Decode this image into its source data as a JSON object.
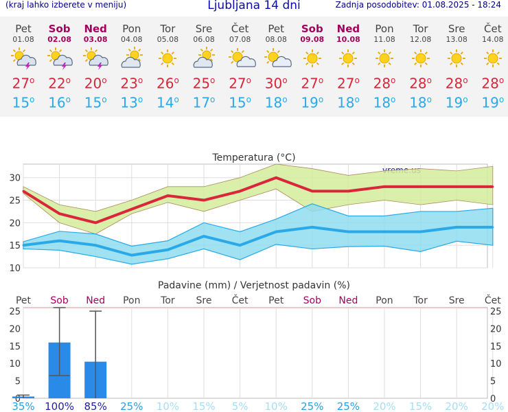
{
  "header": {
    "note": "(kraj lahko izberete v meniju)",
    "title": "Ljubljana 14 dni",
    "updated": "Zadnja posodobitev: 01.08.2025 - 18:24"
  },
  "days": [
    {
      "name": "Pet",
      "date": "01.08",
      "icon": "sun-cloud-lightning-icon",
      "tmax": "27",
      "tmin": "15",
      "weekend": false
    },
    {
      "name": "Sob",
      "date": "02.08",
      "icon": "sun-cloud-lightning-icon",
      "tmax": "22",
      "tmin": "16",
      "weekend": true
    },
    {
      "name": "Ned",
      "date": "03.08",
      "icon": "sun-cloud-lightning-icon",
      "tmax": "20",
      "tmin": "15",
      "weekend": true
    },
    {
      "name": "Pon",
      "date": "04.08",
      "icon": "cloud-sun-icon",
      "tmax": "23",
      "tmin": "13",
      "weekend": false
    },
    {
      "name": "Tor",
      "date": "05.08",
      "icon": "sun-icon",
      "tmax": "26",
      "tmin": "14",
      "weekend": false
    },
    {
      "name": "Sre",
      "date": "06.08",
      "icon": "cloud-sun-icon",
      "tmax": "25",
      "tmin": "17",
      "weekend": false
    },
    {
      "name": "Čet",
      "date": "07.08",
      "icon": "sun-small-cloud-icon",
      "tmax": "27",
      "tmin": "15",
      "weekend": false
    },
    {
      "name": "Pet",
      "date": "08.08",
      "icon": "sun-small-cloud-icon",
      "tmax": "30",
      "tmin": "18",
      "weekend": false
    },
    {
      "name": "Sob",
      "date": "09.08",
      "icon": "sun-icon",
      "tmax": "27",
      "tmin": "19",
      "weekend": true
    },
    {
      "name": "Ned",
      "date": "10.08",
      "icon": "sun-icon",
      "tmax": "27",
      "tmin": "18",
      "weekend": true
    },
    {
      "name": "Pon",
      "date": "11.08",
      "icon": "sun-icon",
      "tmax": "28",
      "tmin": "18",
      "weekend": false
    },
    {
      "name": "Tor",
      "date": "12.08",
      "icon": "sun-icon",
      "tmax": "28",
      "tmin": "18",
      "weekend": false
    },
    {
      "name": "Sre",
      "date": "13.08",
      "icon": "sun-icon",
      "tmax": "28",
      "tmin": "19",
      "weekend": false
    },
    {
      "name": "Čet",
      "date": "14.08",
      "icon": "sun-icon",
      "tmax": "28",
      "tmin": "19",
      "weekend": false
    }
  ],
  "colors": {
    "max_line": "#d9263a",
    "max_band": "#d4ec9a",
    "min_line": "#2aa9e8",
    "min_band": "#8fdcf0",
    "bar": "#2a8ae8",
    "weekend": "#a4005e",
    "prob_high": "#1f1f9e",
    "prob_mid": "#2a9ee0",
    "prob_low": "#a6dcf5"
  },
  "chart_data": [
    {
      "type": "line",
      "title": "Temperatura (°C)",
      "watermark": "vreme.us",
      "ylim": [
        10,
        33
      ],
      "yticks": [
        10,
        15,
        20,
        25,
        30
      ],
      "x": [
        0,
        1,
        2,
        3,
        4,
        5,
        6,
        7,
        8,
        9,
        10,
        11,
        12,
        13
      ],
      "series": [
        {
          "role": "max",
          "values": [
            27,
            22,
            20,
            23,
            26,
            25,
            27,
            30,
            27,
            27,
            28,
            28,
            28,
            28
          ],
          "band_low": [
            26.5,
            20,
            17.5,
            22,
            24.5,
            22.5,
            25,
            27.5,
            22.5,
            24,
            25,
            24,
            25,
            24
          ],
          "band_high": [
            28,
            24,
            22.5,
            25,
            28,
            28,
            30,
            33,
            32,
            30.5,
            31.5,
            32,
            31.5,
            32.5
          ]
        },
        {
          "role": "min",
          "values": [
            15,
            16,
            15,
            12.8,
            14,
            17,
            15,
            18,
            19,
            18,
            18,
            18,
            19,
            19
          ],
          "band_low": [
            14.2,
            13.9,
            12.5,
            10.8,
            12,
            14.2,
            11.8,
            15.2,
            14.2,
            14.7,
            14.8,
            13.6,
            15.9,
            15
          ],
          "band_high": [
            15.8,
            18.1,
            17.5,
            14.8,
            16,
            20,
            18,
            20.8,
            24.2,
            21.5,
            21.5,
            22.5,
            22.5,
            23.2
          ]
        }
      ]
    },
    {
      "type": "bar",
      "title": "Padavine (mm) / Verjetnost padavin (%)",
      "categories": [
        "Pet",
        "Sob",
        "Ned",
        "Pon",
        "Tor",
        "Sre",
        "Čet",
        "Pet",
        "Sob",
        "Ned",
        "Pon",
        "Tor",
        "Sre",
        "Čet"
      ],
      "weekend": [
        false,
        true,
        true,
        false,
        false,
        false,
        false,
        false,
        true,
        true,
        false,
        false,
        false,
        false
      ],
      "values": [
        0.5,
        16,
        10.5,
        0,
        0,
        0,
        0,
        0,
        0,
        0,
        0,
        0,
        0,
        0
      ],
      "err_low": [
        0,
        6.5,
        0,
        0,
        0,
        0,
        0,
        0,
        0,
        0,
        0,
        0,
        0,
        0
      ],
      "err_high": [
        0.9,
        26,
        25,
        0,
        0,
        0,
        0,
        0,
        0,
        0,
        0,
        0,
        0,
        0
      ],
      "probability": [
        "35%",
        "100%",
        "85%",
        "25%",
        "10%",
        "15%",
        "5%",
        "10%",
        "25%",
        "25%",
        "20%",
        "15%",
        "20%",
        "20%"
      ],
      "ylim": [
        0,
        26
      ],
      "yticks": [
        0,
        5,
        10,
        15,
        20,
        25
      ]
    }
  ]
}
